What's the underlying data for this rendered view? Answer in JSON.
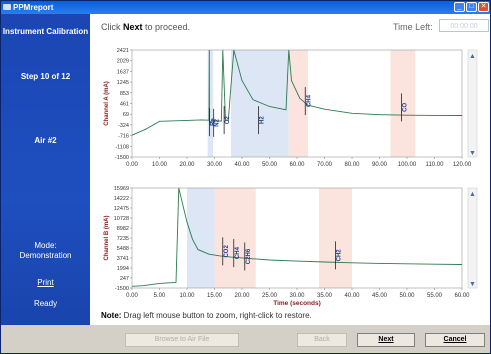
{
  "window": {
    "title": "PPMreport"
  },
  "sidebar": {
    "section": "Instrument Calibration",
    "step": "Step 10 of 12",
    "gas": "Air #2",
    "mode_label": "Mode:",
    "mode_value": "Demonstration",
    "print_link": "Print",
    "status": "Ready"
  },
  "header": {
    "instruction_prefix": "Click ",
    "instruction_bold": "Next",
    "instruction_suffix": " to proceed.",
    "time_left_label": "Time Left:",
    "time_left_value": "00:00:00"
  },
  "note": {
    "bold": "Note:",
    "text": " Drag left mouse button to zoom, right-click to restore."
  },
  "buttons": {
    "browse": "Browse to Air File",
    "back": "Back",
    "next": "Next",
    "cancel": "Cancel"
  },
  "colors": {
    "accent": "#1e4fbf",
    "trace": "#2f7a50",
    "blue_band": "#dce6f5",
    "red_band": "#fbe3de"
  },
  "chart_data": [
    {
      "type": "line",
      "ylabel": "Channel A (mA)",
      "xlabel": "",
      "y_ticks": [
        "2421",
        "2029",
        "1637",
        "1245",
        "853",
        "461",
        "69",
        "-324",
        "-716",
        "-1108",
        "-1500"
      ],
      "y_values": [
        2421,
        2029,
        1637,
        1245,
        853,
        461,
        69,
        -324,
        -716,
        -1108,
        -1500
      ],
      "x_ticks": [
        "0.00",
        "10.00",
        "20.00",
        "30.00",
        "40.00",
        "50.00",
        "60.00",
        "70.00",
        "80.00",
        "90.00",
        "100.00",
        "110.00",
        "120.00"
      ],
      "xlim": [
        0,
        120
      ],
      "ylim": [
        -1500,
        2421
      ],
      "bands": [
        {
          "kind": "blue",
          "x0": 27.5,
          "x1": 29.5
        },
        {
          "kind": "blue",
          "x0": 36,
          "x1": 57
        },
        {
          "kind": "red",
          "x0": 57,
          "x1": 64
        },
        {
          "kind": "red",
          "x0": 94,
          "x1": 103
        }
      ],
      "markers": [
        {
          "label": "Re",
          "x": 28.2,
          "y": -220
        },
        {
          "label": "N2",
          "x": 29.7,
          "y": -250
        },
        {
          "label": "O2",
          "x": 33.5,
          "y": -150
        },
        {
          "label": "H2",
          "x": 46,
          "y": -150
        },
        {
          "label": "CH4",
          "x": 63,
          "y": 550
        },
        {
          "label": "CO",
          "x": 98,
          "y": 320
        }
      ],
      "series": [
        {
          "points": [
            [
              0,
              -700
            ],
            [
              5,
              -480
            ],
            [
              10,
              -190
            ],
            [
              20,
              -160
            ],
            [
              25,
              -140
            ],
            [
              28,
              -150
            ],
            [
              28.1,
              2421
            ],
            [
              28.2,
              -220
            ],
            [
              29,
              -180
            ],
            [
              32.5,
              -180
            ],
            [
              33,
              2421
            ],
            [
              34,
              -150
            ],
            [
              35,
              -150
            ],
            [
              37,
              2421
            ],
            [
              40,
              1300
            ],
            [
              44,
              600
            ],
            [
              50,
              350
            ],
            [
              56,
              230
            ],
            [
              57,
              2421
            ],
            [
              58,
              1300
            ],
            [
              61,
              650
            ],
            [
              64,
              400
            ],
            [
              70,
              250
            ],
            [
              80,
              100
            ],
            [
              90,
              50
            ],
            [
              100,
              30
            ],
            [
              110,
              25
            ],
            [
              120,
              20
            ]
          ]
        }
      ]
    },
    {
      "type": "line",
      "ylabel": "Channel B (mA)",
      "xlabel": "Time (seconds)",
      "y_ticks": [
        "15969",
        "14222",
        "12475",
        "10728",
        "8982",
        "7235",
        "5488",
        "3741",
        "1994",
        "247",
        "-1500"
      ],
      "y_values": [
        15969,
        14222,
        12475,
        10728,
        8982,
        7235,
        5488,
        3741,
        1994,
        247,
        -1500
      ],
      "x_ticks": [
        "0.00",
        "5.00",
        "10.00",
        "15.00",
        "20.00",
        "25.00",
        "30.00",
        "35.00",
        "40.00",
        "45.00",
        "50.00",
        "55.00",
        "60.00"
      ],
      "xlim": [
        0,
        60
      ],
      "ylim": [
        -1500,
        15969
      ],
      "bands": [
        {
          "kind": "blue",
          "x0": 10,
          "x1": 15
        },
        {
          "kind": "red",
          "x0": 15,
          "x1": 22.5
        },
        {
          "kind": "red",
          "x0": 34,
          "x1": 40
        }
      ],
      "markers": [
        {
          "label": "CO2",
          "x": 16.5,
          "y": 4900
        },
        {
          "label": "CH4",
          "x": 18.5,
          "y": 4600
        },
        {
          "label": "C2H6",
          "x": 20.5,
          "y": 4000
        },
        {
          "label": "CH2",
          "x": 37,
          "y": 4200
        }
      ],
      "series": [
        {
          "points": [
            [
              0,
              -1200
            ],
            [
              2,
              -1100
            ],
            [
              5,
              -700
            ],
            [
              8,
              -520
            ],
            [
              8.5,
              15969
            ],
            [
              9,
              14000
            ],
            [
              10,
              10000
            ],
            [
              11,
              7000
            ],
            [
              12,
              5200
            ],
            [
              14,
              4400
            ],
            [
              16,
              4100
            ],
            [
              18,
              3900
            ],
            [
              20,
              3750
            ],
            [
              25,
              3400
            ],
            [
              30,
              3200
            ],
            [
              35,
              3050
            ],
            [
              40,
              2900
            ],
            [
              45,
              2800
            ],
            [
              50,
              2720
            ],
            [
              55,
              2650
            ],
            [
              60,
              2600
            ]
          ]
        }
      ]
    }
  ]
}
